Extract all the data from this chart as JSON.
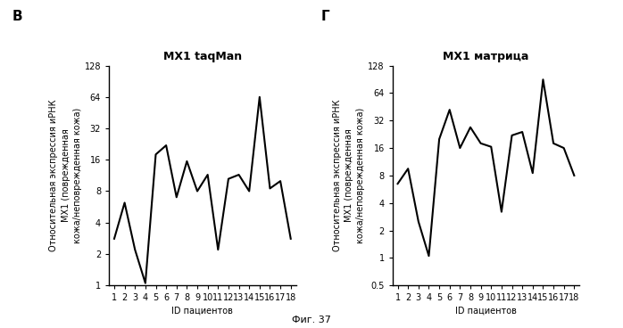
{
  "panel_B_label": "В",
  "panel_G_label": "Г",
  "title_B": "МХ1 taqMan",
  "title_G": "МХ1 матрица",
  "xlabel": "ID пациентов",
  "ylabel_line1": "Относительная экспрессия иРНК",
  "ylabel_line2": "МХ1 (поврежденная",
  "ylabel_line3": "кожа/неповрежденная кожа)",
  "fig_label": "Фиг. 37",
  "x_ticks": [
    1,
    2,
    3,
    4,
    5,
    6,
    7,
    8,
    9,
    10,
    11,
    12,
    13,
    14,
    15,
    16,
    17,
    18
  ],
  "data_B": [
    2.8,
    6.2,
    2.2,
    1.05,
    18.0,
    22.0,
    7.0,
    15.5,
    8.0,
    11.5,
    2.2,
    10.5,
    11.5,
    8.0,
    64.0,
    8.5,
    10.0,
    2.8
  ],
  "data_G": [
    6.5,
    9.5,
    2.5,
    1.05,
    20.0,
    42.0,
    16.0,
    27.0,
    18.0,
    16.5,
    3.2,
    22.0,
    24.0,
    8.5,
    90.0,
    18.0,
    16.0,
    8.0
  ],
  "yticks_B": [
    1,
    2,
    4,
    8,
    16,
    32,
    64,
    128
  ],
  "yticks_G": [
    0.5,
    1,
    2,
    4,
    8,
    16,
    32,
    64,
    128
  ],
  "ylim_B_log": [
    1,
    128
  ],
  "ylim_G_log": [
    0.5,
    128
  ],
  "line_color": "#000000",
  "line_width": 1.5,
  "bg_color": "#ffffff",
  "font_color": "#000000",
  "tick_fontsize": 7,
  "label_fontsize": 7,
  "title_fontsize": 9,
  "panel_fontsize": 11
}
